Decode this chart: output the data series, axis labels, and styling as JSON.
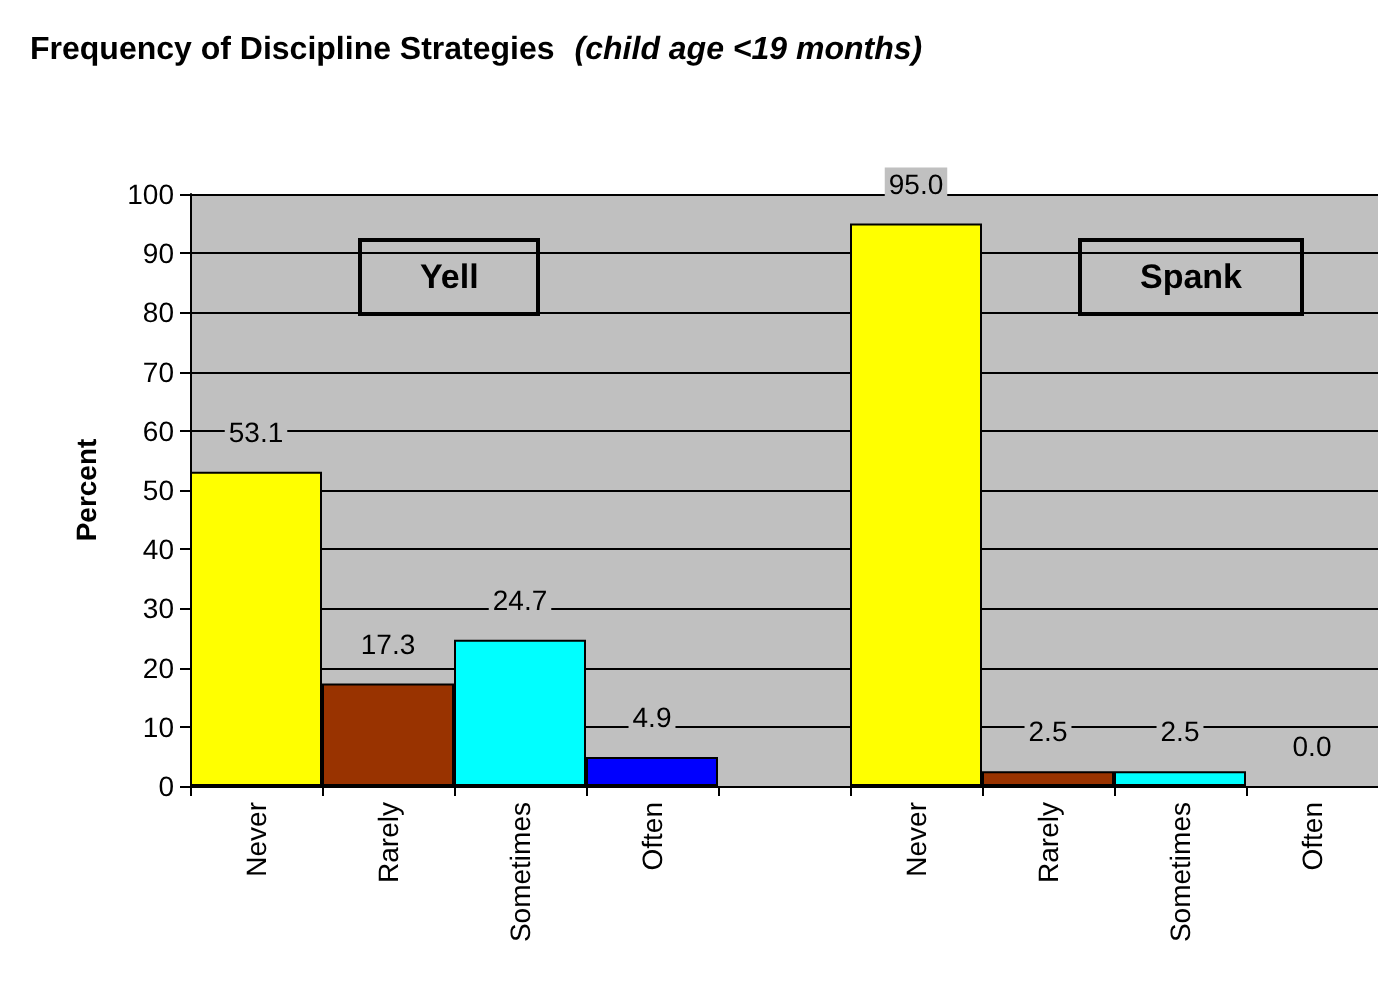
{
  "chart_data": {
    "type": "bar",
    "title": "Frequency of Discipline Strategies",
    "subtitle": "(child age <19 months)",
    "ylabel": "Percent",
    "categories": [
      "Never",
      "Rarely",
      "Sometimes",
      "Often",
      null,
      "Never",
      "Rarely",
      "Sometimes",
      "Often"
    ],
    "values": [
      53.1,
      17.3,
      24.7,
      4.9,
      null,
      95.0,
      2.5,
      2.5,
      0.0
    ],
    "colors": [
      "#ffff00",
      "#993300",
      "#00ffff",
      "#0000ff",
      null,
      "#ffff00",
      "#993300",
      "#00ffff",
      "#0000ff"
    ],
    "value_labels": [
      "53.1",
      "17.3",
      "24.7",
      "4.9",
      null,
      "95.0",
      "2.5",
      "2.5",
      "0.0"
    ],
    "annotations": [
      "Yell",
      "Spank"
    ],
    "ylim": [
      0,
      100
    ],
    "yticks": [
      0,
      10,
      20,
      30,
      40,
      50,
      60,
      70,
      80,
      90,
      100
    ],
    "grid": "y"
  }
}
